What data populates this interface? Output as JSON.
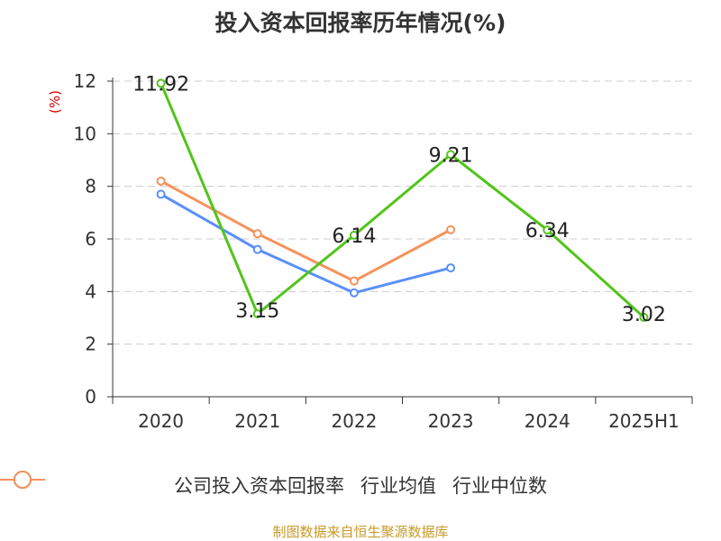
{
  "chart_data": {
    "type": "line",
    "title": "投入资本回报率历年情况(%)",
    "ylabel": "(%)",
    "categories": [
      "2020",
      "2021",
      "2022",
      "2023",
      "2024",
      "2025H1"
    ],
    "ylim": [
      0,
      12
    ],
    "yticks": [
      0,
      2,
      4,
      6,
      8,
      10,
      12
    ],
    "grid": "horizontal-dashed",
    "legend_position": "bottom",
    "series": [
      {
        "name": "公司投入资本回报率",
        "color": "#52c41a",
        "values": [
          11.92,
          3.15,
          6.14,
          9.21,
          6.34,
          3.02
        ],
        "labels": [
          "11.92",
          "3.15",
          "6.14",
          "9.21",
          "6.34",
          "3.02"
        ]
      },
      {
        "name": "行业均值",
        "color": "#5b8ff9",
        "values": [
          7.7,
          5.6,
          3.95,
          4.9,
          null,
          null
        ]
      },
      {
        "name": "行业中位数",
        "color": "#f6925c",
        "values": [
          8.2,
          6.2,
          4.4,
          6.35,
          null,
          null
        ]
      }
    ]
  },
  "source": "制图数据来自恒生聚源数据库"
}
